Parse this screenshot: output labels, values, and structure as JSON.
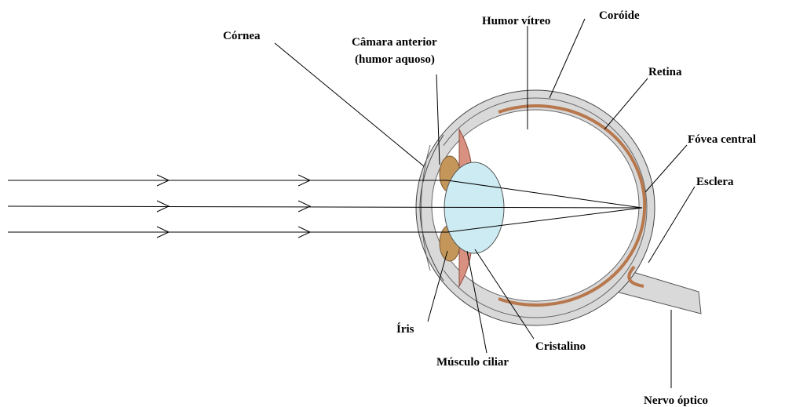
{
  "labels": [
    "Córnea",
    "Câmara anterior",
    "(humor aquoso)",
    "Humor vítreo",
    "Coróide",
    "Retina",
    "Fóvea central",
    "Esclera",
    "Íris",
    "Músculo ciliar",
    "Cristalino",
    "Nervo óptico"
  ]
}
